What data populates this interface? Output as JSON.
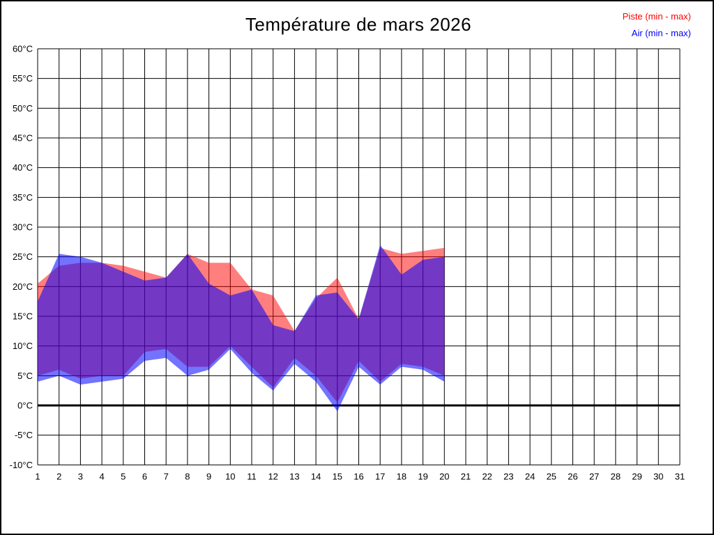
{
  "chart_data": {
    "type": "area",
    "title": "Température de mars 2026",
    "x": [
      1,
      2,
      3,
      4,
      5,
      6,
      7,
      8,
      9,
      10,
      11,
      12,
      13,
      14,
      15,
      16,
      17,
      18,
      19,
      20
    ],
    "series": [
      {
        "name": "Piste (min - max)",
        "color": "#FF0000",
        "fill_opacity": 0.5,
        "min": [
          5,
          6,
          4.5,
          5,
          5,
          9,
          9.5,
          6.5,
          6.5,
          10,
          6.5,
          3,
          8,
          5,
          0.5,
          7.5,
          4,
          7,
          6.5,
          5
        ],
        "max": [
          20.5,
          23.5,
          24,
          24,
          23.5,
          22.5,
          21.5,
          25.5,
          24,
          24,
          19.5,
          18.5,
          12.5,
          18,
          21.5,
          14.5,
          26.5,
          25.5,
          26,
          26.5
        ]
      },
      {
        "name": "Air (min - max)",
        "color": "#0000FF",
        "fill_opacity": 0.55,
        "min": [
          4,
          5,
          3.5,
          4,
          4.5,
          7.5,
          8,
          5,
          6,
          9.5,
          5.5,
          2.5,
          7,
          4,
          -1,
          6.5,
          3.5,
          6.5,
          6,
          4
        ],
        "max": [
          17.5,
          25.5,
          25,
          24,
          22.5,
          21,
          21.5,
          25.5,
          20.5,
          18.5,
          19.5,
          13.5,
          12.5,
          18.5,
          19,
          14.5,
          27,
          22,
          24.5,
          25
        ]
      }
    ],
    "x_axis": {
      "min": 1,
      "max": 31,
      "tick_step": 1,
      "tick_labels": [
        "1",
        "2",
        "3",
        "4",
        "5",
        "6",
        "7",
        "8",
        "9",
        "10",
        "11",
        "12",
        "13",
        "14",
        "15",
        "16",
        "17",
        "18",
        "19",
        "20",
        "21",
        "22",
        "23",
        "24",
        "25",
        "26",
        "27",
        "28",
        "29",
        "30",
        "31"
      ]
    },
    "y_axis": {
      "min": -10,
      "max": 60,
      "tick_step": 5,
      "unit": "°C",
      "tick_labels": [
        "-10°C",
        "-5°C",
        "0°C",
        "5°C",
        "10°C",
        "15°C",
        "20°C",
        "25°C",
        "30°C",
        "35°C",
        "40°C",
        "45°C",
        "50°C",
        "55°C",
        "60°C"
      ]
    },
    "grid": true,
    "zero_line": true,
    "grid_color": "#000000",
    "legend_position": "top-right"
  }
}
